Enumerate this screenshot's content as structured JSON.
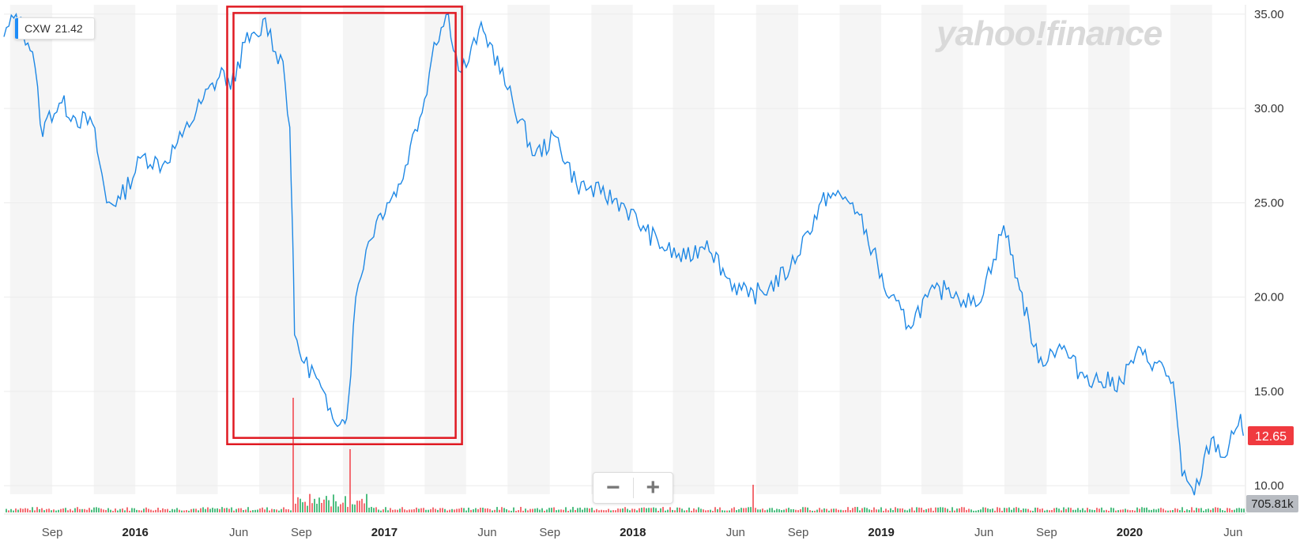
{
  "ticker": {
    "symbol": "CXW",
    "value": "21.42"
  },
  "watermark": "yahoo!finance",
  "price_badge": "12.65",
  "volume_badge": "705.81k",
  "zoom": {
    "minus": "−",
    "plus": "+"
  },
  "colors": {
    "line": "#1e88e5",
    "highlight": "#e01a22",
    "price_badge": "#f03a3f",
    "volume_badge": "#b8bcc2",
    "vol_up": "#2fb36b",
    "vol_down": "#f2545b"
  },
  "chart_data": {
    "type": "line",
    "title": "",
    "ylabel": "",
    "xlabel": "",
    "ylim": [
      8.5,
      35.5
    ],
    "y_ticks": [
      "35.00",
      "30.00",
      "25.00",
      "20.00",
      "15.00",
      "10.00"
    ],
    "x_ticks": [
      "Sep",
      "2016",
      "Jun",
      "Sep",
      "2017",
      "Jun",
      "Sep",
      "2018",
      "Jun",
      "Sep",
      "2019",
      "Jun",
      "Sep",
      "2020",
      "Jun"
    ],
    "series": [
      {
        "x": [
          "2015-06-22",
          "2015-07-10",
          "2015-08-03",
          "2015-08-18",
          "2015-08-24",
          "2015-09-15",
          "2015-10-05",
          "2015-10-30",
          "2015-11-20",
          "2015-12-10",
          "2016-01-12",
          "2016-02-10",
          "2016-03-10",
          "2016-04-10",
          "2016-05-10",
          "2016-05-20",
          "2016-06-10",
          "2016-06-30",
          "2016-07-10",
          "2016-07-25",
          "2016-08-05",
          "2016-08-15",
          "2016-08-19",
          "2016-08-22",
          "2016-09-05",
          "2016-09-20",
          "2016-10-10",
          "2016-10-31",
          "2016-11-04",
          "2016-11-09",
          "2016-11-20",
          "2016-12-05",
          "2016-12-20",
          "2017-01-05",
          "2017-01-25",
          "2017-02-08",
          "2017-02-22",
          "2017-03-01",
          "2017-03-15",
          "2017-04-05",
          "2017-04-20",
          "2017-05-05",
          "2017-05-20",
          "2017-06-05",
          "2017-07-01",
          "2017-08-10",
          "2017-09-10",
          "2017-10-10",
          "2017-11-15",
          "2017-12-15",
          "2018-01-20",
          "2018-02-20",
          "2018-03-20",
          "2018-04-20",
          "2018-05-20",
          "2018-06-20",
          "2018-07-20",
          "2018-08-20",
          "2018-09-15",
          "2018-10-15",
          "2018-11-20",
          "2018-12-20",
          "2019-01-05",
          "2019-02-10",
          "2019-03-10",
          "2019-04-10",
          "2019-05-20",
          "2019-06-15",
          "2019-06-30",
          "2019-07-20",
          "2019-08-20",
          "2019-09-20",
          "2019-10-20",
          "2019-11-20",
          "2019-12-20",
          "2020-01-10",
          "2020-02-10",
          "2020-03-05",
          "2020-03-18",
          "2020-04-05",
          "2020-04-30",
          "2020-05-20",
          "2020-06-05",
          "2020-06-12",
          "2020-06-16"
        ],
        "y": [
          33.8,
          35.0,
          33.0,
          28.5,
          29.5,
          30.3,
          29.5,
          29.2,
          25.0,
          25.2,
          27.5,
          27.0,
          28.5,
          30.5,
          32.0,
          31.0,
          33.5,
          33.8,
          34.8,
          33.0,
          32.5,
          29.0,
          23.5,
          18.0,
          16.5,
          16.0,
          14.0,
          13.5,
          13.3,
          14.5,
          20.0,
          22.5,
          24.0,
          25.0,
          26.0,
          28.0,
          29.5,
          30.5,
          33.5,
          35.0,
          32.0,
          32.5,
          34.2,
          33.5,
          31.0,
          27.5,
          28.5,
          26.0,
          25.5,
          25.0,
          23.5,
          22.5,
          22.0,
          23.0,
          21.0,
          20.0,
          20.5,
          21.5,
          23.5,
          25.5,
          25.0,
          22.5,
          20.5,
          18.5,
          20.0,
          20.5,
          19.5,
          22.0,
          23.8,
          21.0,
          16.5,
          17.5,
          16.0,
          15.5,
          15.5,
          17.0,
          16.5,
          15.5,
          10.5,
          9.5,
          12.5,
          11.5,
          13.0,
          13.8,
          12.65
        ]
      }
    ],
    "annotations": [
      {
        "type": "highlight-box",
        "from": "2016-05-15",
        "to": "2017-04-25",
        "y_low": 12.2,
        "y_high": 35.4
      }
    ]
  }
}
